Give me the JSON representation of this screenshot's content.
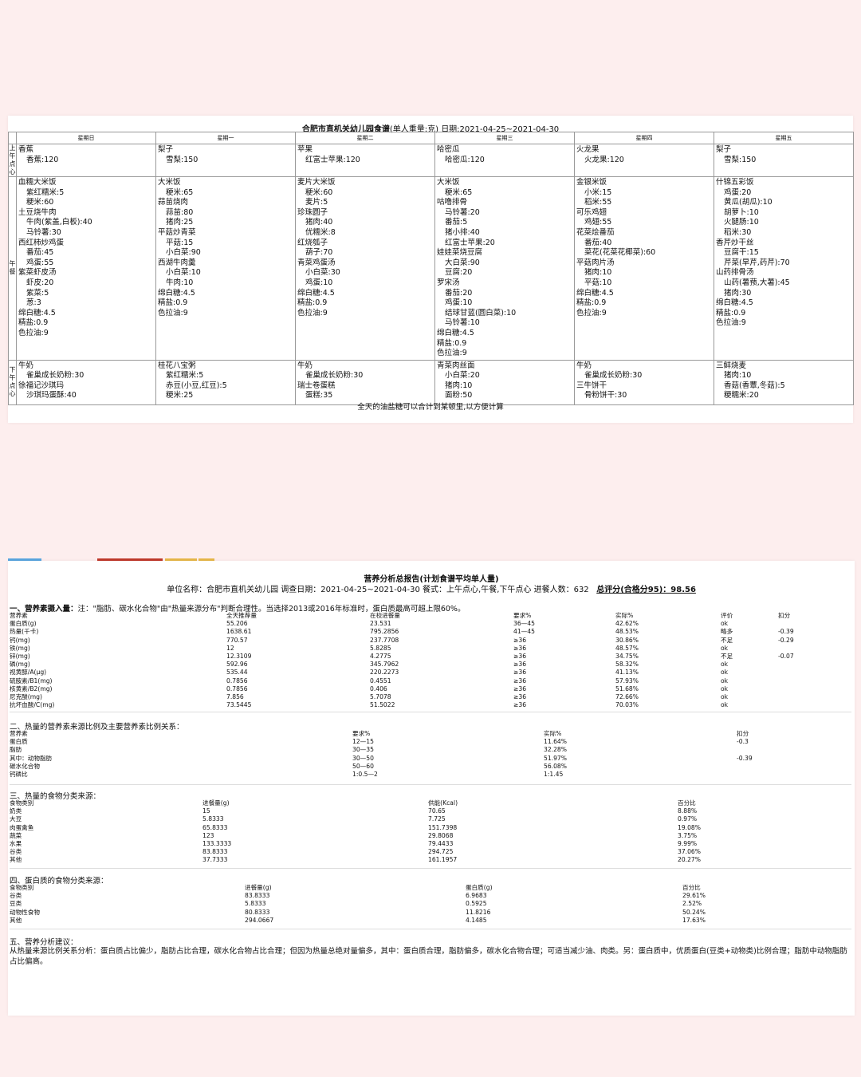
{
  "menu": {
    "title": "合肥市直机关幼儿园食谱",
    "unit_note": "(单人重量:克)",
    "date": "日期:2021-04-25~2021-04-30",
    "days": [
      "星期日",
      "星期一",
      "星期二",
      "星期三",
      "星期四",
      "星期五"
    ],
    "meals": [
      "上午点心",
      "午餐",
      "下午点心"
    ],
    "rows": [
      [
        [
          {
            "d": "香蕉"
          },
          {
            "i": "香蕉:120"
          }
        ],
        [
          {
            "d": "梨子"
          },
          {
            "i": "雪梨:150"
          }
        ],
        [
          {
            "d": "苹果"
          },
          {
            "i": "红富士苹果:120"
          }
        ],
        [
          {
            "d": "哈密瓜"
          },
          {
            "i": "哈密瓜:120"
          }
        ],
        [
          {
            "d": "火龙果"
          },
          {
            "i": "火龙果:120"
          }
        ],
        [
          {
            "d": "梨子"
          },
          {
            "i": "雪梨:150"
          }
        ]
      ],
      [
        [
          {
            "d": "血糯大米饭"
          },
          {
            "i": "紫红糯米:5"
          },
          {
            "i": "粳米:60"
          },
          {
            "d": "土豆烧牛肉"
          },
          {
            "i": "牛肉(紫盖,白板):40"
          },
          {
            "i": "马铃薯:30"
          },
          {
            "d": "西红柿炒鸡蛋"
          },
          {
            "i": "番茄:45"
          },
          {
            "i": "鸡蛋:55"
          },
          {
            "d": "紫菜虾皮汤"
          },
          {
            "i": "虾皮:20"
          },
          {
            "i": "紫菜:5"
          },
          {
            "i": "葱:3"
          },
          {
            "i0": "绵白糖:4.5"
          },
          {
            "i0": "精盐:0.9"
          },
          {
            "i0": "色拉油:9"
          }
        ],
        [
          {
            "d": "大米饭"
          },
          {
            "i": "粳米:65"
          },
          {
            "d": "蒜苗烧肉"
          },
          {
            "i": "蒜苗:80"
          },
          {
            "i": "猪肉:25"
          },
          {
            "d": "平菇炒青菜"
          },
          {
            "i": "平菇:15"
          },
          {
            "i": "小白菜:90"
          },
          {
            "d": "西湖牛肉羹"
          },
          {
            "i": "小白菜:10"
          },
          {
            "i": "牛肉:10"
          },
          {
            "i0": "绵白糖:4.5"
          },
          {
            "i0": "精盐:0.9"
          },
          {
            "i0": "色拉油:9"
          }
        ],
        [
          {
            "d": "麦片大米饭"
          },
          {
            "i": "粳米:60"
          },
          {
            "i": "麦片:5"
          },
          {
            "d": "珍珠圆子"
          },
          {
            "i": "猪肉:40"
          },
          {
            "i": "优糯米:8"
          },
          {
            "d": "红烧瓠子"
          },
          {
            "i": "葫子:70"
          },
          {
            "d": "青菜鸡蛋汤"
          },
          {
            "i": "小白菜:30"
          },
          {
            "i": "鸡蛋:10"
          },
          {
            "i0": "绵白糖:4.5"
          },
          {
            "i0": "精盐:0.9"
          },
          {
            "i0": "色拉油:9"
          }
        ],
        [
          {
            "d": "大米饭"
          },
          {
            "i": "粳米:65"
          },
          {
            "d": "咕噜排骨"
          },
          {
            "i": "马铃薯:20"
          },
          {
            "i": "番茄:5"
          },
          {
            "i": "猪小排:40"
          },
          {
            "i": "红富士苹果:20"
          },
          {
            "d": "娃娃菜烧豆腐"
          },
          {
            "i": "大白菜:90"
          },
          {
            "i": "豆腐:20"
          },
          {
            "d": "罗宋汤"
          },
          {
            "i": "番茄:20"
          },
          {
            "i": "鸡蛋:10"
          },
          {
            "i": "结球甘蓝(圆白菜):10"
          },
          {
            "i": "马铃薯:10"
          },
          {
            "i0": "绵白糖:4.5"
          },
          {
            "i0": "精盐:0.9"
          },
          {
            "i0": "色拉油:9"
          }
        ],
        [
          {
            "d": "金银米饭"
          },
          {
            "i": "小米:15"
          },
          {
            "i": "稻米:55"
          },
          {
            "d": "可乐鸡翅"
          },
          {
            "i": "鸡翅:55"
          },
          {
            "d": "花菜烩番茄"
          },
          {
            "i": "番茄:40"
          },
          {
            "i": "菜花(花菜花椰菜):60"
          },
          {
            "d": "平菇肉片汤"
          },
          {
            "i": "猪肉:10"
          },
          {
            "i": "平菇:10"
          },
          {
            "i0": "绵白糖:4.5"
          },
          {
            "i0": "精盐:0.9"
          },
          {
            "i0": "色拉油:9"
          }
        ],
        [
          {
            "d": "什锦五彩饭"
          },
          {
            "i": "鸡蛋:20"
          },
          {
            "i": "黄瓜(胡瓜):10"
          },
          {
            "i": "胡萝卜:10"
          },
          {
            "i": "火腿肠:10"
          },
          {
            "i": "稻米:30"
          },
          {
            "d": "香芹炒干丝"
          },
          {
            "i": "豆腐干:15"
          },
          {
            "i": "芹菜(旱芹,药芹):70"
          },
          {
            "d": "山药排骨汤"
          },
          {
            "i": "山药(薯蓣,大薯):45"
          },
          {
            "i": "猪肉:30"
          },
          {
            "i0": "绵白糖:4.5"
          },
          {
            "i0": "精盐:0.9"
          },
          {
            "i0": "色拉油:9"
          }
        ]
      ],
      [
        [
          {
            "d": "牛奶"
          },
          {
            "i": "雀巢成长奶粉:30"
          },
          {
            "d": "徐福记沙琪玛"
          },
          {
            "i": "沙琪玛蛋酥:40"
          }
        ],
        [
          {
            "d": "桂花八宝粥"
          },
          {
            "i": "紫红糯米:5"
          },
          {
            "i": "赤豆(小豆,红豆):5"
          },
          {
            "i": "粳米:25"
          }
        ],
        [
          {
            "d": "牛奶"
          },
          {
            "i": "雀巢成长奶粉:30"
          },
          {
            "d": "瑞士卷蛋糕"
          },
          {
            "i": "蛋糕:35"
          }
        ],
        [
          {
            "d": "青菜肉丝面"
          },
          {
            "i": "小白菜:20"
          },
          {
            "i": "猪肉:10"
          },
          {
            "i": "面粉:50"
          }
        ],
        [
          {
            "d": "牛奶"
          },
          {
            "i": "雀巢成长奶粉:30"
          },
          {
            "d": "三牛饼干"
          },
          {
            "i": "骨粉饼干:30"
          }
        ],
        [
          {
            "d": "三鲜烧麦"
          },
          {
            "i": "猪肉:10"
          },
          {
            "i": "香菇(香蕈,冬菇):5"
          },
          {
            "i": "粳糯米:20"
          }
        ]
      ]
    ],
    "footer": "全天的油盐糖可以合计到某顿里,以方便计算"
  },
  "report": {
    "title": "营养分析总报告(计划食谱平均单人量)",
    "meta": "单位名称：合肥市直机关幼儿园  调查日期：2021-04-25~2021-04-30   餐式：上午点心,午餐,下午点心   进餐人数：632",
    "score": "总评分(合格分95)：98.56",
    "s1": {
      "heading": "一、营养素摄入量：",
      "note": "注：\"脂肪、碳水化合物\"由\"热量来源分布\"判断合理性。当选择2013或2016年标准时，蛋白质最高可超上限60%。",
      "headers": [
        "营养素",
        "全天推荐量",
        "在校进餐量",
        "要求%",
        "实际%",
        "评价",
        "扣分"
      ],
      "rows": [
        [
          "蛋白质(g)",
          "55.206",
          "23.531",
          "36—45",
          "42.62%",
          "ok",
          ""
        ],
        [
          "热量(千卡)",
          "1638.61",
          "795.2856",
          "41—45",
          "48.53%",
          "略多",
          "-0.39"
        ],
        [
          "钙(mg)",
          "770.57",
          "237.7708",
          "≥36",
          "30.86%",
          "不足",
          "-0.29"
        ],
        [
          "铁(mg)",
          "12",
          "5.8285",
          "≥36",
          "48.57%",
          "ok",
          ""
        ],
        [
          "锌(mg)",
          "12.3109",
          "4.2775",
          "≥36",
          "34.75%",
          "不足",
          "-0.07"
        ],
        [
          "磷(mg)",
          "592.96",
          "345.7962",
          "≥36",
          "58.32%",
          "ok",
          ""
        ],
        [
          "视黄醇/A(μg)",
          "535.44",
          "220.2273",
          "≥36",
          "41.13%",
          "ok",
          ""
        ],
        [
          "硫胺素/B1(mg)",
          "0.7856",
          "0.4551",
          "≥36",
          "57.93%",
          "ok",
          ""
        ],
        [
          "核黄素/B2(mg)",
          "0.7856",
          "0.406",
          "≥36",
          "51.68%",
          "ok",
          ""
        ],
        [
          "尼克酸(mg)",
          "7.856",
          "5.7078",
          "≥36",
          "72.66%",
          "ok",
          ""
        ],
        [
          "抗坏血酸/C(mg)",
          "73.5445",
          "51.5022",
          "≥36",
          "70.03%",
          "ok",
          ""
        ]
      ]
    },
    "s2": {
      "heading": "二、热量的营养素来源比例及主要营养素比例关系：",
      "headers": [
        "营养素",
        "要求%",
        "实际%",
        "扣分"
      ],
      "rows": [
        [
          "蛋白质",
          "12—15",
          "11.64%",
          "-0.3"
        ],
        [
          "脂肪",
          "30—35",
          "32.28%",
          ""
        ],
        [
          "  其中：动物脂肪",
          "30—50",
          "51.97%",
          "-0.39"
        ],
        [
          "碳水化合物",
          "50—60",
          "56.08%",
          ""
        ],
        [
          "钙磷比",
          "1:0.5—2",
          "1:1.45",
          ""
        ]
      ]
    },
    "s3": {
      "heading": "三、热量的食物分类来源：",
      "headers": [
        "食物类别",
        "进餐量(g)",
        "供能(Kcal)",
        "百分比"
      ],
      "rows": [
        [
          "奶类",
          "15",
          "70.65",
          "8.88%"
        ],
        [
          "大豆",
          "5.8333",
          "7.725",
          "0.97%"
        ],
        [
          "肉蛋禽鱼",
          "65.8333",
          "151.7398",
          "19.08%"
        ],
        [
          "蔬菜",
          "123",
          "29.8068",
          "3.75%"
        ],
        [
          "水果",
          "133.3333",
          "79.4433",
          "9.99%"
        ],
        [
          "谷类",
          "83.8333",
          "294.725",
          "37.06%"
        ],
        [
          "其他",
          "37.7333",
          "161.1957",
          "20.27%"
        ]
      ]
    },
    "s4": {
      "heading": "四、蛋白质的食物分类来源：",
      "headers": [
        "食物类别",
        "进餐量(g)",
        "蛋白质(g)",
        "百分比"
      ],
      "rows": [
        [
          "谷类",
          "83.8333",
          "6.9683",
          "29.61%"
        ],
        [
          "豆类",
          "5.8333",
          "0.5925",
          "2.52%"
        ],
        [
          "动物性食物",
          "80.8333",
          "11.8216",
          "50.24%"
        ],
        [
          "其他",
          "294.0667",
          "4.1485",
          "17.63%"
        ]
      ]
    },
    "s5": {
      "heading": "五、营养分析建议：",
      "text": "从热量来源比例关系分析：蛋白质占比偏少，脂肪占比合理，碳水化合物占比合理；但因为热量总绝对量偏多，其中：蛋白质合理，脂肪偏多，碳水化合物合理；可适当减少油、肉类。另：蛋白质中，优质蛋白(豆类+动物类)比例合理；脂肪中动物脂肪占比偏高。"
    }
  },
  "colors": {
    "page_bg": "#fdeeee",
    "deco_blue": "#5aa6e0",
    "deco_red": "#c0392b",
    "deco_gold": "#e8b84a"
  }
}
